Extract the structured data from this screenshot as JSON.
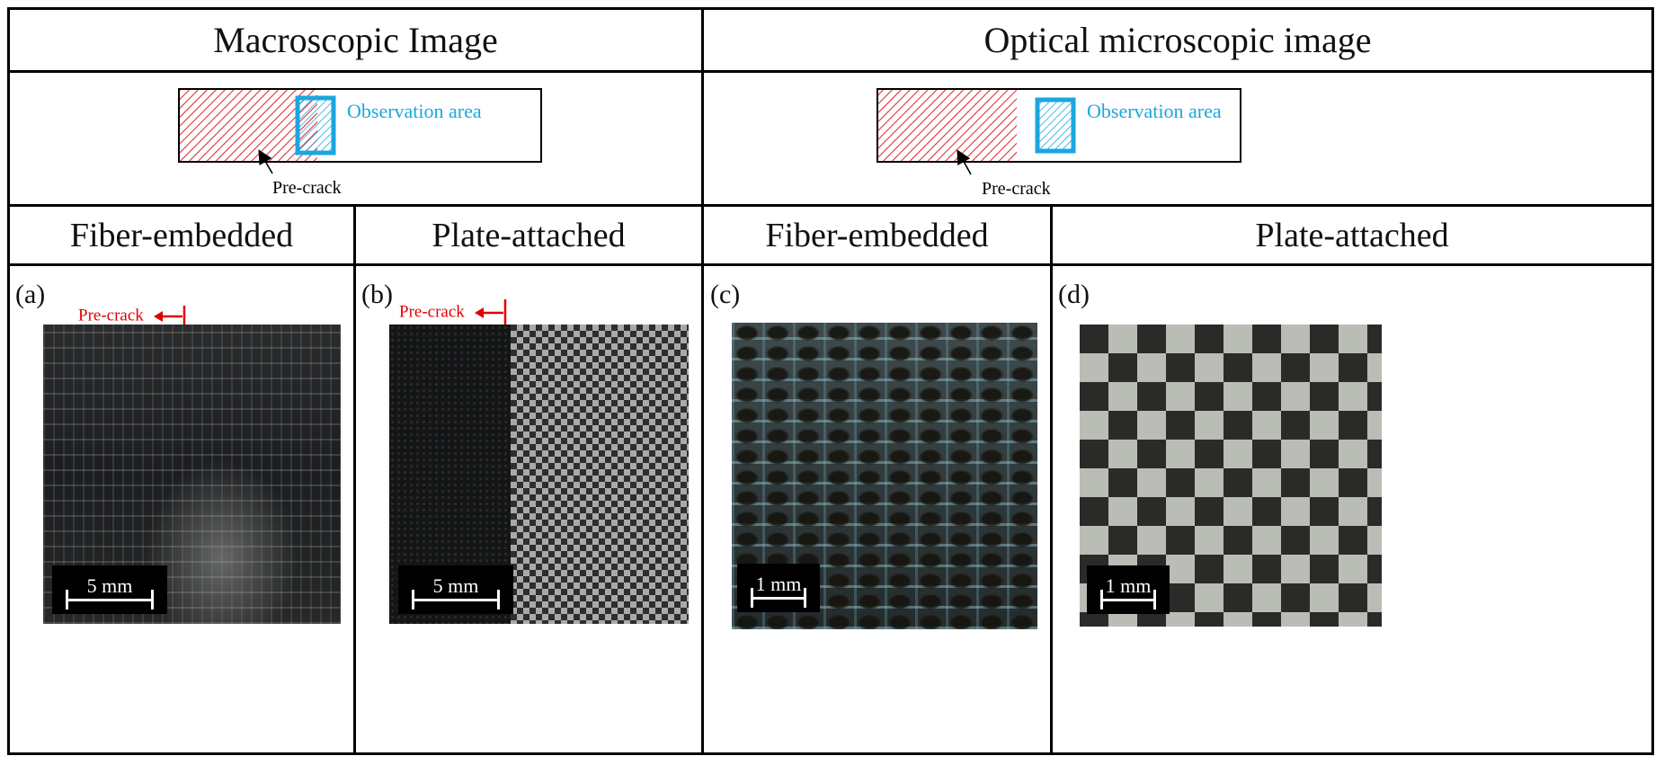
{
  "headers": {
    "macro": "Macroscopic Image",
    "optical": "Optical microscopic image"
  },
  "schematic": {
    "observation_label": "Observation area",
    "precrack_label": "Pre-crack",
    "hatch_red": "#e0202a",
    "hatch_blue": "#1aa7e0"
  },
  "columns": [
    {
      "title": "Fiber-embedded"
    },
    {
      "title": "Plate-attached"
    },
    {
      "title": "Fiber-embedded"
    },
    {
      "title": "Plate-attached"
    }
  ],
  "panels": [
    {
      "label": "(a)",
      "scale": "5 mm",
      "precrack": "Pre-crack"
    },
    {
      "label": "(b)",
      "scale": "5 mm",
      "precrack": "Pre-crack"
    },
    {
      "label": "(c)",
      "scale": "1 mm"
    },
    {
      "label": "(d)",
      "scale": "1 mm"
    }
  ]
}
